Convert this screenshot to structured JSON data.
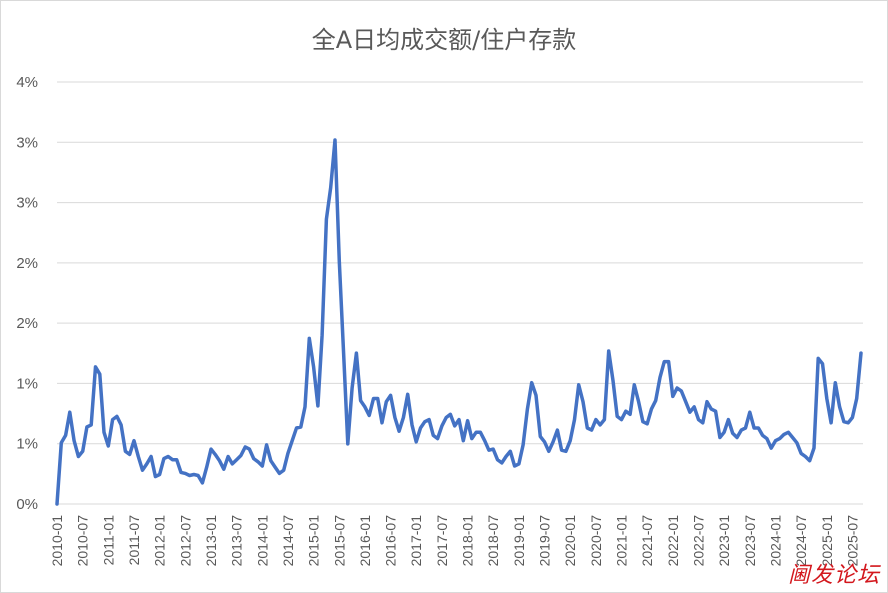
{
  "chart_data": {
    "type": "line",
    "title": "全A日均成交额/住户存款",
    "xlabel": "",
    "ylabel": "",
    "ylim": [
      0,
      0.04
    ],
    "y_tick_labels": [
      "0%",
      "1%",
      "1%",
      "2%",
      "2%",
      "3%",
      "3%",
      "4%"
    ],
    "x_tick_labels": [
      "2010-01",
      "2010-07",
      "2011-01",
      "2011-07",
      "2012-01",
      "2012-07",
      "2013-01",
      "2013-07",
      "2014-01",
      "2014-07",
      "2015-01",
      "2015-07",
      "2016-01",
      "2016-07",
      "2017-01",
      "2017-07",
      "2018-01",
      "2018-07",
      "2019-01",
      "2019-07",
      "2020-01",
      "2020-07",
      "2021-01",
      "2021-07",
      "2022-01",
      "2022-07",
      "2023-01",
      "2023-07",
      "2024-01",
      "2024-07",
      "2025-01",
      "2025-07"
    ],
    "grid": true,
    "legend": "none",
    "series_color": "#4472c4",
    "x_start": "2010-01",
    "x_end": "2025-09",
    "values": [
      0.0,
      0.0058,
      0.0065,
      0.0087,
      0.006,
      0.0045,
      0.005,
      0.0073,
      0.0075,
      0.013,
      0.0123,
      0.0068,
      0.0055,
      0.008,
      0.0083,
      0.0075,
      0.005,
      0.0047,
      0.006,
      0.0045,
      0.0032,
      0.0038,
      0.0045,
      0.0026,
      0.0028,
      0.0043,
      0.0045,
      0.0042,
      0.0042,
      0.003,
      0.0029,
      0.0027,
      0.0028,
      0.0027,
      0.002,
      0.0035,
      0.0052,
      0.0047,
      0.0041,
      0.0033,
      0.0045,
      0.0038,
      0.0042,
      0.0046,
      0.0054,
      0.0052,
      0.0043,
      0.004,
      0.0036,
      0.0056,
      0.0041,
      0.0035,
      0.0029,
      0.0032,
      0.0048,
      0.006,
      0.0072,
      0.0073,
      0.0092,
      0.0157,
      0.013,
      0.0093,
      0.016,
      0.027,
      0.03,
      0.0345,
      0.023,
      0.0145,
      0.0057,
      0.011,
      0.0143,
      0.0098,
      0.0092,
      0.0084,
      0.01,
      0.01,
      0.0077,
      0.0097,
      0.0103,
      0.0082,
      0.0069,
      0.0082,
      0.0104,
      0.0075,
      0.0059,
      0.0072,
      0.0078,
      0.008,
      0.0065,
      0.0062,
      0.0074,
      0.0082,
      0.0085,
      0.0074,
      0.008,
      0.006,
      0.0079,
      0.0062,
      0.0068,
      0.0068,
      0.006,
      0.0051,
      0.0052,
      0.0042,
      0.0039,
      0.0045,
      0.005,
      0.0036,
      0.0038,
      0.0056,
      0.009,
      0.0115,
      0.0103,
      0.0064,
      0.0059,
      0.005,
      0.0059,
      0.007,
      0.0051,
      0.005,
      0.006,
      0.008,
      0.0113,
      0.0097,
      0.0072,
      0.007,
      0.008,
      0.0075,
      0.008,
      0.0145,
      0.0117,
      0.0083,
      0.008,
      0.0088,
      0.0085,
      0.0113,
      0.0097,
      0.0078,
      0.0076,
      0.009,
      0.0098,
      0.012,
      0.0135,
      0.0135,
      0.0102,
      0.011,
      0.0107,
      0.0097,
      0.0087,
      0.0092,
      0.008,
      0.0077,
      0.0097,
      0.009,
      0.0088,
      0.0063,
      0.0068,
      0.008,
      0.0067,
      0.0063,
      0.007,
      0.0072,
      0.0087,
      0.0072,
      0.0072,
      0.0065,
      0.0062,
      0.0053,
      0.006,
      0.0062,
      0.0066,
      0.0068,
      0.0063,
      0.0058,
      0.0048,
      0.0045,
      0.0041,
      0.0053,
      0.0138,
      0.0133,
      0.01,
      0.0077,
      0.0115,
      0.0092,
      0.0078,
      0.0077,
      0.0082,
      0.01,
      0.0143
    ]
  },
  "watermark_text": "阃发论坛"
}
